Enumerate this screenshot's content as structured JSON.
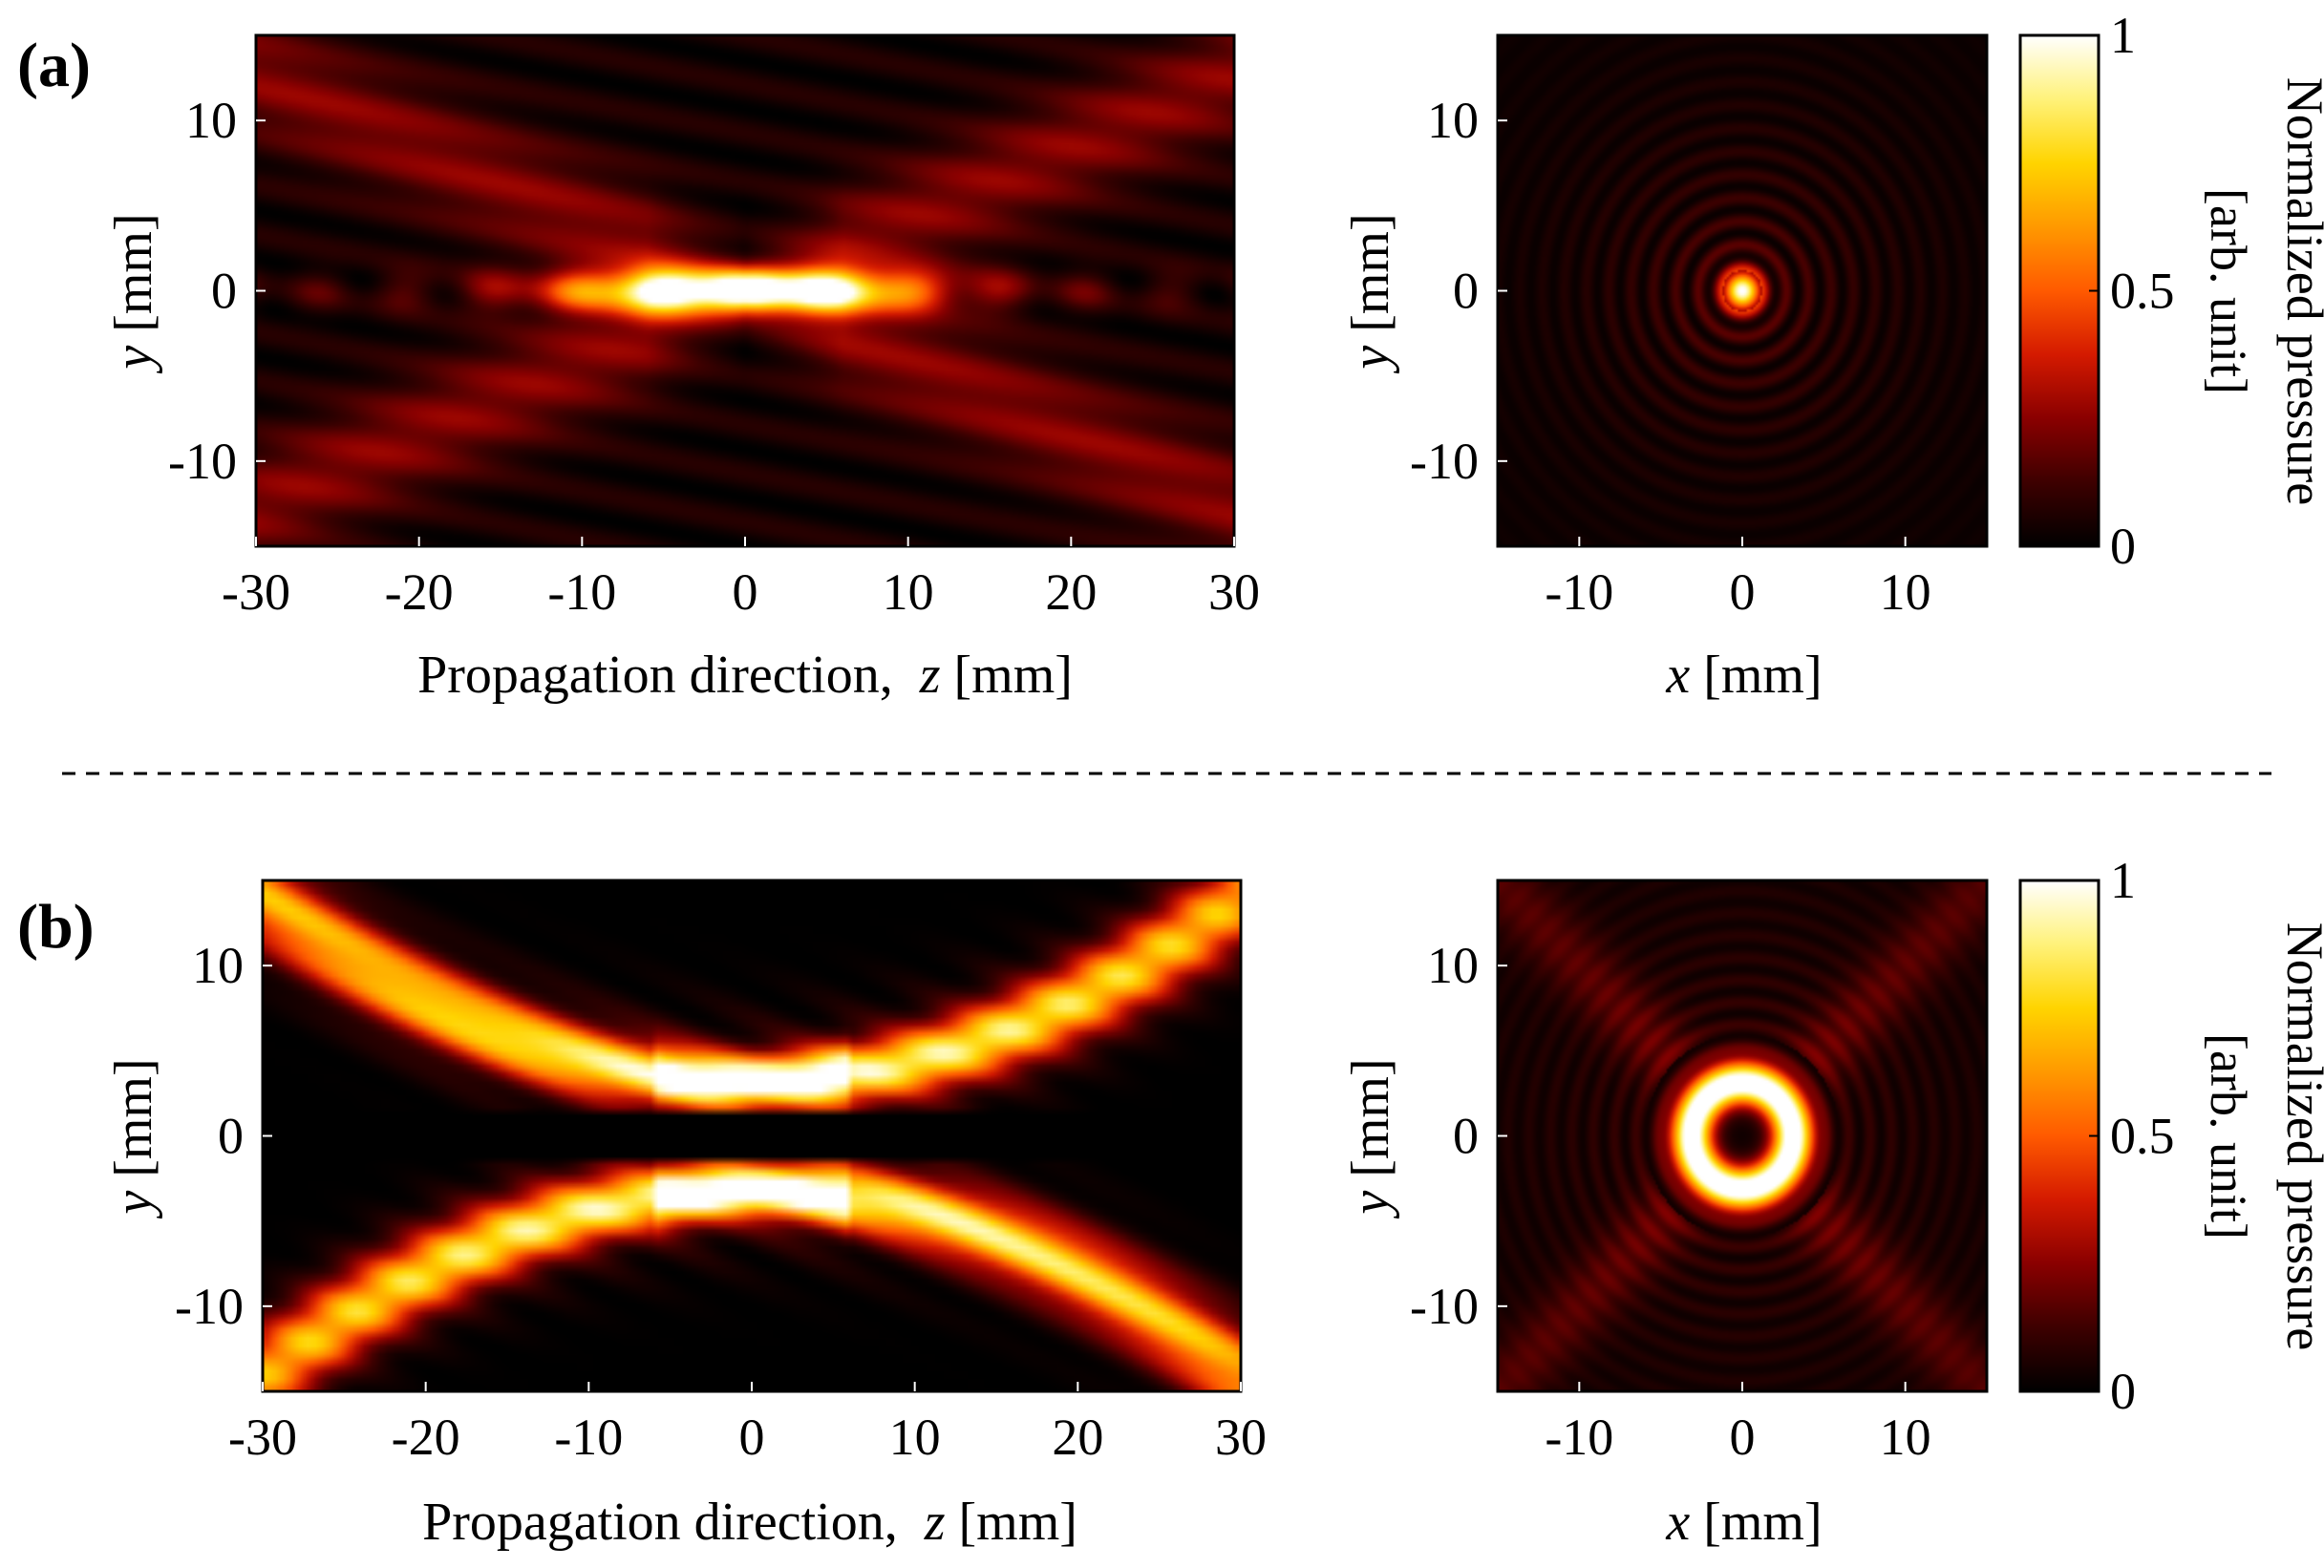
{
  "figure": {
    "panels": [
      {
        "label": "(a)"
      },
      {
        "label": "(b)"
      }
    ],
    "separator": "dashed"
  },
  "colormap": {
    "name": "hot",
    "stops": [
      "#000000",
      "#3d0000",
      "#8a0000",
      "#d41a00",
      "#ff5a00",
      "#ff9900",
      "#ffd400",
      "#fff27a",
      "#ffffff"
    ]
  },
  "chart_data": [
    {
      "id": "a-longitudinal",
      "type": "heatmap",
      "panel": "(a)",
      "field": "gaussian-focus-longitudinal",
      "xlabel_prefix": "Propagation direction,  ",
      "xlabel_var": "z",
      "xlabel_unit": " [mm]",
      "ylabel_var": "y",
      "ylabel_unit": " [mm]",
      "xlim": [
        -30,
        30
      ],
      "ylim": [
        -15,
        15
      ],
      "xticks": [
        "-30",
        "-20",
        "-10",
        "0",
        "10",
        "20",
        "30"
      ],
      "xtick_values": [
        -30,
        -20,
        -10,
        0,
        10,
        20,
        30
      ],
      "yticks": [
        "10",
        "0",
        "-10"
      ],
      "ytick_values": [
        10,
        0,
        -10
      ],
      "focus_z": 0,
      "focus_y": 0
    },
    {
      "id": "a-transverse",
      "type": "heatmap",
      "panel": "(a)",
      "field": "bessel-spot",
      "xlabel_var": "x",
      "xlabel_unit": " [mm]",
      "ylabel_var": "y",
      "ylabel_unit": " [mm]",
      "xlim": [
        -15,
        15
      ],
      "ylim": [
        -15,
        15
      ],
      "xticks": [
        "-10",
        "0",
        "10"
      ],
      "xtick_values": [
        -10,
        0,
        10
      ],
      "yticks": [
        "10",
        "0",
        "-10"
      ],
      "ytick_values": [
        10,
        0,
        -10
      ]
    },
    {
      "id": "a-colorbar",
      "type": "colorbar",
      "panel": "(a)",
      "label_line1": "Normalized pressure",
      "label_line2": "[arb. unit]",
      "ticks": [
        "1",
        "0.5",
        "0"
      ],
      "tick_values": [
        1,
        0.5,
        0
      ],
      "range": [
        0,
        1
      ]
    },
    {
      "id": "b-longitudinal",
      "type": "heatmap",
      "panel": "(b)",
      "field": "vortex-focus-longitudinal",
      "xlabel_prefix": "Propagation direction,  ",
      "xlabel_var": "z",
      "xlabel_unit": " [mm]",
      "ylabel_var": "y",
      "ylabel_unit": " [mm]",
      "xlim": [
        -30,
        30
      ],
      "ylim": [
        -15,
        15
      ],
      "xticks": [
        "-30",
        "-20",
        "-10",
        "0",
        "10",
        "20",
        "30"
      ],
      "xtick_values": [
        -30,
        -20,
        -10,
        0,
        10,
        20,
        30
      ],
      "yticks": [
        "10",
        "0",
        "-10"
      ],
      "ytick_values": [
        10,
        0,
        -10
      ],
      "ring_radius_mm": 3.2
    },
    {
      "id": "b-transverse",
      "type": "heatmap",
      "panel": "(b)",
      "field": "vortex-ring",
      "xlabel_var": "x",
      "xlabel_unit": " [mm]",
      "ylabel_var": "y",
      "ylabel_unit": " [mm]",
      "xlim": [
        -15,
        15
      ],
      "ylim": [
        -15,
        15
      ],
      "xticks": [
        "-10",
        "0",
        "10"
      ],
      "xtick_values": [
        -10,
        0,
        10
      ],
      "yticks": [
        "10",
        "0",
        "-10"
      ],
      "ytick_values": [
        10,
        0,
        -10
      ],
      "ring_radius_mm": 3.1
    },
    {
      "id": "b-colorbar",
      "type": "colorbar",
      "panel": "(b)",
      "label_line1": "Normalized pressure",
      "label_line2": "[arb. unit]",
      "ticks": [
        "1",
        "0.5",
        "0"
      ],
      "tick_values": [
        1,
        0.5,
        0
      ],
      "range": [
        0,
        1
      ]
    }
  ]
}
